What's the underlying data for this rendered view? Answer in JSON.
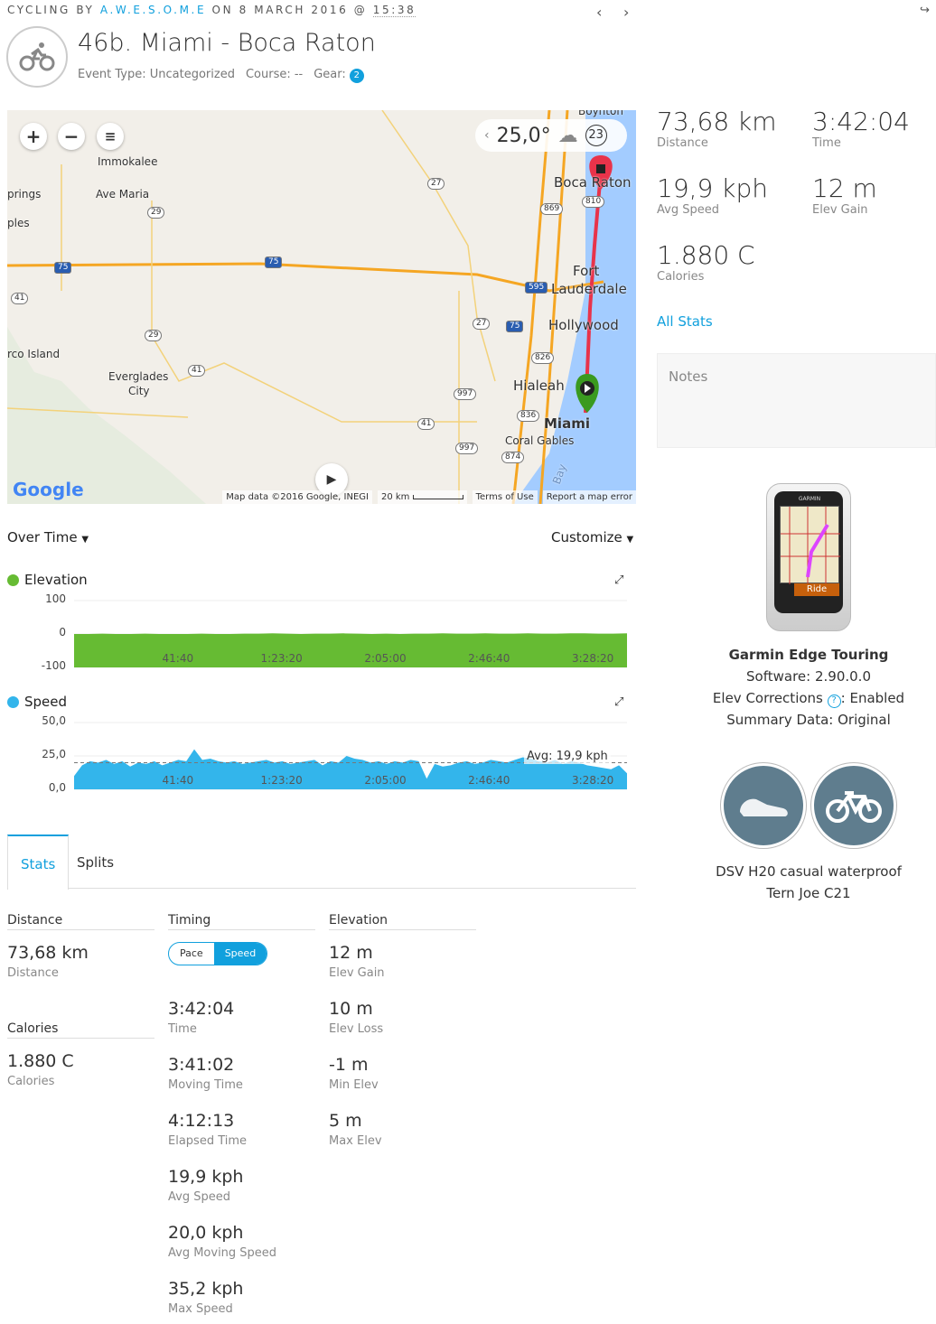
{
  "header": {
    "prefix": "CYCLING BY ",
    "user": "A.W.E.S.O.M.E",
    "on": " ON 8 MARCH 2016 @ ",
    "time": "15:38",
    "title": "46b. Miami - Boca Raton",
    "event_type": "Event Type: Uncategorized",
    "course": "Course: --",
    "gear_label": "Gear:",
    "gear_count": "2"
  },
  "map": {
    "weather_temp": "25,0°",
    "weather_badge": "23",
    "labels": [
      "Boynton",
      "Immokalee",
      "Ave Maria",
      "prings",
      "ples",
      "Boca Raton",
      "Fort",
      "Lauderdale",
      "Hollywood",
      "rco Island",
      "Everglades",
      "City",
      "Hialeah",
      "Miami",
      "Coral Gables",
      "Bay"
    ],
    "shields": [
      "27",
      "869",
      "810",
      "29",
      "75",
      "75",
      "41",
      "595",
      "27",
      "75",
      "29",
      "41",
      "826",
      "997",
      "41",
      "836",
      "997",
      "874"
    ],
    "attribution": "Map data ©2016 Google, INEGI",
    "scale": "20 km",
    "terms": "Terms of Use",
    "report": "Report a map error",
    "logo": "Google",
    "colors": {
      "route": "#e8334a",
      "start": "#3a9a1f",
      "end": "#e8334a",
      "water": "#a3ccff",
      "land": "#f2efe9",
      "highway": "#f5a623"
    }
  },
  "chart_controls": {
    "over_time": "Over Time",
    "customize": "Customize"
  },
  "chart_data": [
    {
      "type": "area",
      "name": "Elevation",
      "color": "#66bb33",
      "yticks": [
        "100",
        "0",
        "-100"
      ],
      "ylim": [
        -100,
        100
      ],
      "xticks": [
        "41:40",
        "1:23:20",
        "2:05:00",
        "2:46:40",
        "3:28:20"
      ],
      "xlim_seconds": [
        0,
        13324
      ],
      "values": [
        0,
        0,
        1,
        0,
        0,
        1,
        0,
        0,
        0,
        1,
        0,
        0,
        1,
        1,
        2,
        1,
        0,
        1,
        1,
        2,
        1,
        0,
        1,
        0,
        1,
        1,
        2,
        1,
        1,
        2,
        1,
        1,
        2,
        1,
        1,
        2,
        2,
        1,
        1,
        2
      ]
    },
    {
      "type": "area",
      "name": "Speed",
      "color": "#33b5eb",
      "yticks": [
        "50,0",
        "25,0",
        "0,0"
      ],
      "ylim": [
        0,
        50
      ],
      "xticks": [
        "41:40",
        "1:23:20",
        "2:05:00",
        "2:46:40",
        "3:28:20"
      ],
      "xlim_seconds": [
        0,
        13324
      ],
      "avg": 19.9,
      "avg_label": "Avg: 19,9 kph",
      "values": [
        10,
        18,
        21,
        20,
        22,
        19,
        21,
        17,
        20,
        19,
        21,
        18,
        20,
        22,
        21,
        30,
        22,
        23,
        21,
        20,
        21,
        19,
        20,
        21,
        22,
        20,
        21,
        19,
        20,
        21,
        22,
        18,
        21,
        20,
        25,
        23,
        22,
        20,
        21,
        19,
        21,
        20,
        22,
        21,
        8,
        19,
        17,
        18,
        20,
        21,
        19,
        20,
        22,
        21,
        20,
        22,
        24,
        23,
        21,
        20,
        22,
        19,
        21,
        20,
        18,
        17,
        16,
        15,
        18,
        12
      ]
    }
  ],
  "tabs": [
    {
      "label": "Stats"
    },
    {
      "label": "Splits"
    }
  ],
  "stats": {
    "distance_hdr": "Distance",
    "distance": {
      "value": "73,68 km",
      "label": "Distance"
    },
    "calories_hdr": "Calories",
    "calories": {
      "value": "1.880 C",
      "label": "Calories"
    },
    "timing_hdr": "Timing",
    "pace": "Pace",
    "speed": "Speed",
    "timing": [
      {
        "value": "3:42:04",
        "label": "Time"
      },
      {
        "value": "3:41:02",
        "label": "Moving Time"
      },
      {
        "value": "4:12:13",
        "label": "Elapsed Time"
      },
      {
        "value": "19,9 kph",
        "label": "Avg Speed"
      },
      {
        "value": "20,0 kph",
        "label": "Avg Moving Speed"
      },
      {
        "value": "35,2 kph",
        "label": "Max Speed"
      }
    ],
    "elev_hdr": "Elevation",
    "timing_first": {
      "value": "",
      "label": ""
    },
    "elevation": [
      {
        "value": "12 m",
        "label": "Elev Gain"
      },
      {
        "value": "10 m",
        "label": "Elev Loss"
      },
      {
        "value": "-1 m",
        "label": "Min Elev"
      },
      {
        "value": "5 m",
        "label": "Max Elev"
      }
    ]
  },
  "summary": [
    {
      "value": "73,68 km",
      "label": "Distance"
    },
    {
      "value": "3:42:04",
      "label": "Time"
    },
    {
      "value": "19,9 kph",
      "label": "Avg Speed"
    },
    {
      "value": "12 m",
      "label": "Elev Gain"
    },
    {
      "value": "1.880 C",
      "label": "Calories"
    }
  ],
  "all_stats": "All Stats",
  "notes_placeholder": "Notes",
  "device": {
    "name": "Garmin Edge Touring",
    "software": "Software: 2.90.0.0",
    "elev_corr": "Elev Corrections",
    "elev_corr_val": ": Enabled",
    "summary": "Summary Data: Original",
    "brand": "GARMIN",
    "screen_btn": "Ride"
  },
  "gear": [
    "DSV H20 casual waterproof",
    "Tern Joe C21"
  ]
}
